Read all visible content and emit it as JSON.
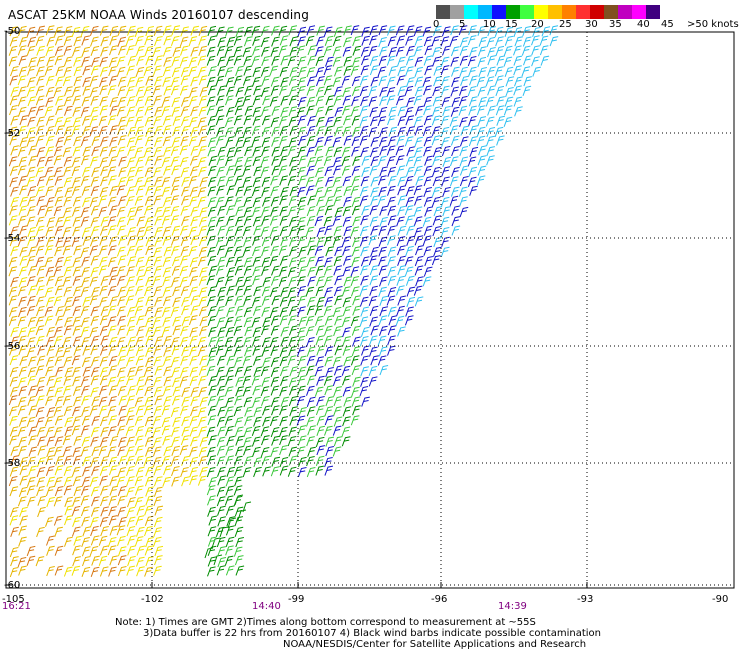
{
  "title": "ASCAT 25KM NOAA Winds 20160107 descending",
  "lat_labels": [
    "-50",
    "-52",
    "-54",
    "-56",
    "-58",
    "-60"
  ],
  "lon_labels": [
    "-105",
    "-102",
    "-99",
    "-96",
    "-93",
    "-90"
  ],
  "time_labels": [
    "16:21",
    "14:40",
    "14:39"
  ],
  "colorbar": {
    "labels": [
      "0",
      "5",
      "10",
      "15",
      "20",
      "25",
      "30",
      "35",
      "40",
      "45",
      ">50 knots"
    ],
    "colors": [
      "#505050",
      "#a0a0a0",
      "#00ffff",
      "#00b8ff",
      "#1010ff",
      "#00a000",
      "#40ff40",
      "#ffff00",
      "#ffc000",
      "#ff8000",
      "#ff3030",
      "#d00000",
      "#805020",
      "#c000c0",
      "#ff00ff",
      "#400080"
    ]
  },
  "notes": {
    "line1": "Note: 1) Times are GMT 2)Times along bottom correspond to measurement at ~55S",
    "line2": "3)Data buffer is 22 hrs from 20160107 4) Black wind barbs indicate possible contamination",
    "line3": "NOAA/NESDIS/Center for Satellite Applications and Research"
  },
  "colors": {
    "calm_cyan": "#30c0f0",
    "blue": "#1414c8",
    "dark_green": "#008c00",
    "green": "#3cc83c",
    "yellow": "#f0e100",
    "gold": "#e6b400",
    "orange": "#d77814",
    "grid": "#000000",
    "time_label": "#800080"
  }
}
